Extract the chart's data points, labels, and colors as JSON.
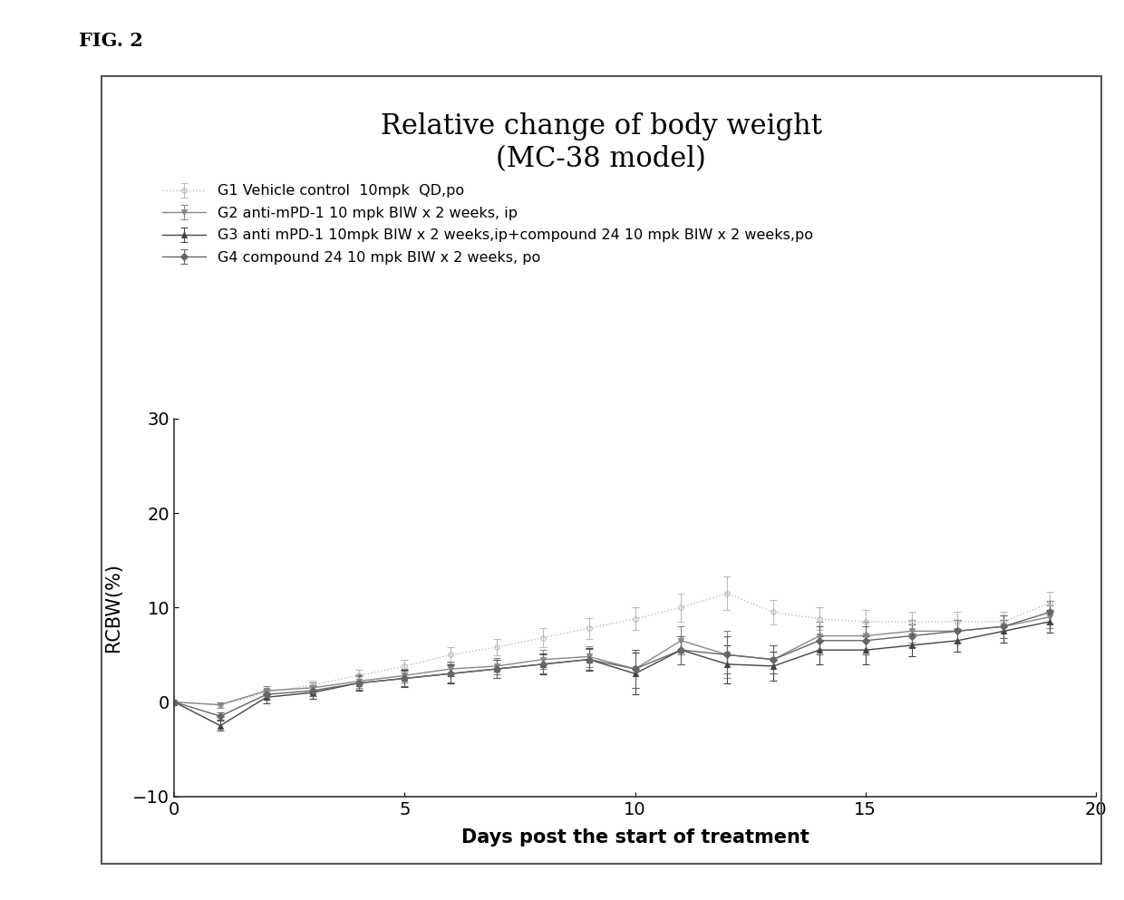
{
  "title": "Relative change of body weight\n(MC-38 model)",
  "xlabel": "Days post the start of treatment",
  "ylabel": "RCBW(%)",
  "xlim": [
    0,
    20
  ],
  "ylim": [
    -10,
    30
  ],
  "yticks": [
    -10,
    0,
    10,
    20,
    30
  ],
  "xticks": [
    0,
    5,
    10,
    15,
    20
  ],
  "fig_label": "FIG. 2",
  "groups": [
    {
      "label": "G1 Vehicle control  10mpk  QD,po",
      "color": "#bbbbbb",
      "marker": "o",
      "linestyle": ":",
      "markersize": 4,
      "x": [
        0,
        1,
        2,
        3,
        4,
        5,
        6,
        7,
        8,
        9,
        10,
        11,
        12,
        13,
        14,
        15,
        16,
        17,
        18,
        19
      ],
      "y": [
        0.0,
        -0.3,
        1.0,
        1.8,
        2.8,
        3.8,
        5.0,
        5.8,
        6.8,
        7.8,
        8.8,
        10.0,
        11.5,
        9.5,
        8.8,
        8.5,
        8.5,
        8.5,
        8.5,
        10.5
      ],
      "yerr": [
        0.0,
        0.3,
        0.4,
        0.5,
        0.6,
        0.7,
        0.8,
        0.9,
        1.0,
        1.1,
        1.2,
        1.5,
        1.8,
        1.3,
        1.2,
        1.2,
        1.0,
        1.0,
        1.0,
        1.2
      ]
    },
    {
      "label": "G2 anti-mPD-1 10 mpk BIW x 2 weeks, ip",
      "color": "#888888",
      "marker": "v",
      "linestyle": "-",
      "markersize": 5,
      "x": [
        0,
        1,
        2,
        3,
        4,
        5,
        6,
        7,
        8,
        9,
        10,
        11,
        12,
        13,
        14,
        15,
        16,
        17,
        18,
        19
      ],
      "y": [
        0.0,
        -0.3,
        1.2,
        1.5,
        2.2,
        2.8,
        3.5,
        3.8,
        4.5,
        4.8,
        3.5,
        6.5,
        5.0,
        4.5,
        7.0,
        7.0,
        7.5,
        7.5,
        8.0,
        9.0
      ],
      "yerr": [
        0.0,
        0.3,
        0.5,
        0.6,
        0.7,
        0.7,
        0.8,
        0.9,
        1.0,
        1.1,
        2.0,
        1.5,
        2.5,
        1.5,
        1.5,
        1.5,
        1.2,
        1.2,
        1.2,
        1.2
      ]
    },
    {
      "label": "G3 anti mPD-1 10mpk BIW x 2 weeks,ip+compound 24 10 mpk BIW x 2 weeks,po",
      "color": "#444444",
      "marker": "^",
      "linestyle": "-",
      "markersize": 5,
      "x": [
        0,
        1,
        2,
        3,
        4,
        5,
        6,
        7,
        8,
        9,
        10,
        11,
        12,
        13,
        14,
        15,
        16,
        17,
        18,
        19
      ],
      "y": [
        0.0,
        -2.5,
        0.5,
        1.0,
        2.0,
        2.5,
        3.0,
        3.5,
        4.0,
        4.5,
        3.0,
        5.5,
        4.0,
        3.8,
        5.5,
        5.5,
        6.0,
        6.5,
        7.5,
        8.5
      ],
      "yerr": [
        0.0,
        0.5,
        0.6,
        0.7,
        0.8,
        0.9,
        1.0,
        1.0,
        1.1,
        1.2,
        2.2,
        1.5,
        2.0,
        1.5,
        1.5,
        1.5,
        1.2,
        1.2,
        1.2,
        1.2
      ]
    },
    {
      "label": "G4 compound 24 10 mpk BIW x 2 weeks, po",
      "color": "#666666",
      "marker": "D",
      "linestyle": "-",
      "markersize": 4,
      "x": [
        0,
        1,
        2,
        3,
        4,
        5,
        6,
        7,
        8,
        9,
        10,
        11,
        12,
        13,
        14,
        15,
        16,
        17,
        18,
        19
      ],
      "y": [
        0.0,
        -1.5,
        0.8,
        1.2,
        2.0,
        2.5,
        3.0,
        3.5,
        4.0,
        4.5,
        3.5,
        5.5,
        5.0,
        4.5,
        6.5,
        6.5,
        7.0,
        7.5,
        8.0,
        9.5
      ],
      "yerr": [
        0.0,
        0.4,
        0.5,
        0.6,
        0.7,
        0.8,
        0.9,
        1.0,
        1.0,
        1.1,
        2.0,
        1.5,
        2.0,
        1.5,
        1.5,
        1.5,
        1.2,
        1.2,
        1.2,
        1.2
      ]
    }
  ],
  "background_color": "#ffffff",
  "title_fontsize": 22,
  "label_fontsize": 15,
  "tick_fontsize": 14,
  "legend_fontsize": 11.5,
  "fig_label_fontsize": 15
}
